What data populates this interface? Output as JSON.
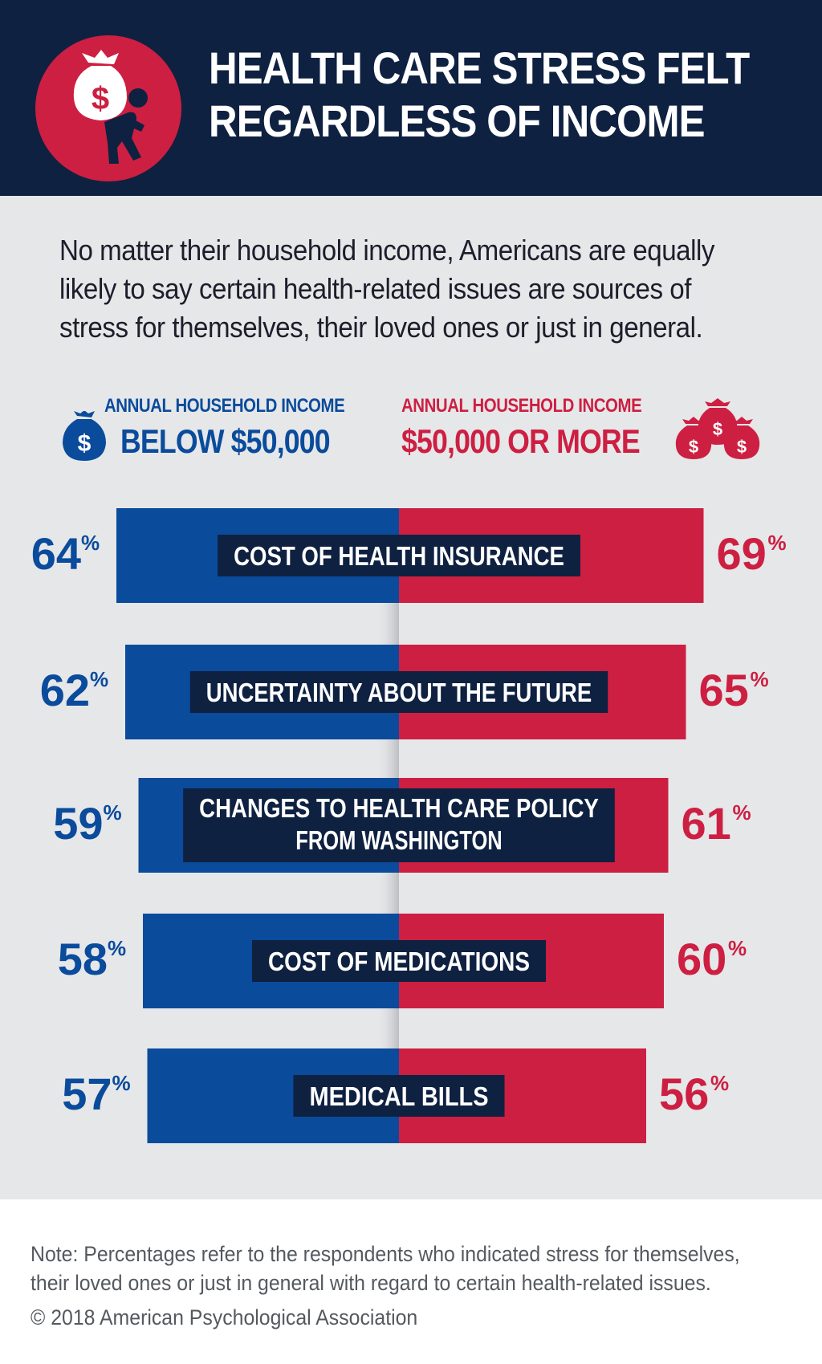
{
  "header": {
    "title_line1": "HEALTH CARE STRESS FELT",
    "title_line2": "REGARDLESS OF INCOME",
    "icon": "person-carrying-money-bag-icon"
  },
  "intro": {
    "line1": "No matter their household income, Americans are equally",
    "line2": "likely to say certain health-related issues are sources of",
    "line3": "stress for themselves, their loved ones or just in general."
  },
  "legend": {
    "left_small": "ANNUAL HOUSEHOLD INCOME",
    "left_big": "BELOW $50,000",
    "left_icon": "money-bag-icon",
    "right_small": "ANNUAL HOUSEHOLD INCOME",
    "right_big": "$50,000 OR MORE",
    "right_icon": "money-bags-icon"
  },
  "colors": {
    "navy": "#0f2141",
    "blue": "#0a4b9c",
    "red": "#cd1f42",
    "background": "#e6e7e9"
  },
  "chart_data": {
    "type": "bar",
    "categories": [
      "COST OF HEALTH INSURANCE",
      "UNCERTAINTY ABOUT THE FUTURE",
      "CHANGES TO HEALTH CARE POLICY FROM WASHINGTON",
      "COST OF MEDICATIONS",
      "MEDICAL BILLS"
    ],
    "category_lines": [
      [
        "COST OF HEALTH INSURANCE"
      ],
      [
        "UNCERTAINTY ABOUT THE FUTURE"
      ],
      [
        "CHANGES TO HEALTH CARE POLICY",
        "FROM WASHINGTON"
      ],
      [
        "COST OF MEDICATIONS"
      ],
      [
        "MEDICAL BILLS"
      ]
    ],
    "series": [
      {
        "name": "BELOW $50,000",
        "values": [
          64,
          62,
          59,
          58,
          57
        ],
        "color": "#0a4b9c"
      },
      {
        "name": "$50,000 OR MORE",
        "values": [
          69,
          65,
          61,
          60,
          56
        ],
        "color": "#cd1f42"
      }
    ],
    "value_suffix": "%",
    "orientation": "diverging-horizontal"
  },
  "footer": {
    "note_line1": "Note: Percentages refer to the respondents who indicated stress for themselves,",
    "note_line2": "their loved ones or just in general with regard to certain health-related issues.",
    "copyright": "© 2018 American Psychological Association"
  }
}
